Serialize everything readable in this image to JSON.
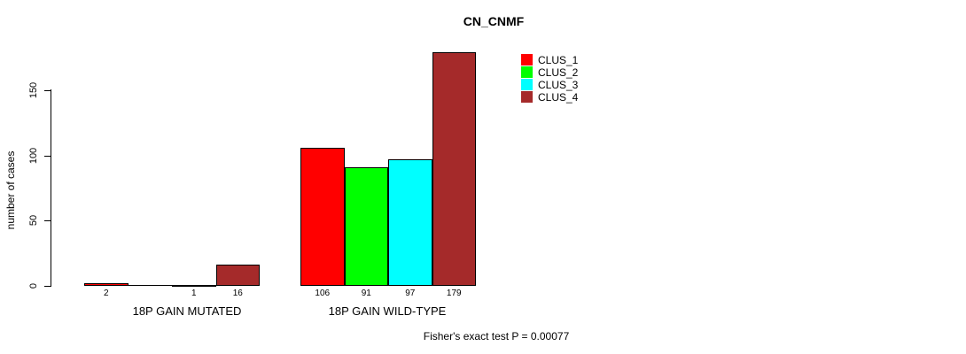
{
  "chart_data": {
    "type": "bar",
    "title": "CN_CNMF",
    "xlabel": "",
    "ylabel": "number of cases",
    "categories": [
      "18P GAIN MUTATED",
      "18P GAIN WILD-TYPE"
    ],
    "series": [
      {
        "name": "CLUS_1",
        "color": "#FF0000",
        "values": [
          2,
          106
        ]
      },
      {
        "name": "CLUS_2",
        "color": "#00FF00",
        "values": [
          0,
          91
        ]
      },
      {
        "name": "CLUS_3",
        "color": "#00FFFF",
        "values": [
          1,
          97
        ]
      },
      {
        "name": "CLUS_4",
        "color": "#A52A2A",
        "values": [
          16,
          179
        ]
      }
    ],
    "bar_labels": [
      [
        "2",
        "",
        "1",
        "16"
      ],
      [
        "106",
        "91",
        "97",
        "179"
      ]
    ],
    "ylim": [
      0,
      180
    ],
    "yticks": [
      0,
      50,
      100,
      150
    ],
    "grid": "off",
    "legend_position": "top-right-inside",
    "annotation": "Fisher's exact test P = 0.00077"
  },
  "legend": {
    "items": [
      {
        "label": "CLUS_1",
        "color": "#FF0000"
      },
      {
        "label": "CLUS_2",
        "color": "#00FF00"
      },
      {
        "label": "CLUS_3",
        "color": "#00FFFF"
      },
      {
        "label": "CLUS_4",
        "color": "#A52A2A"
      }
    ]
  }
}
